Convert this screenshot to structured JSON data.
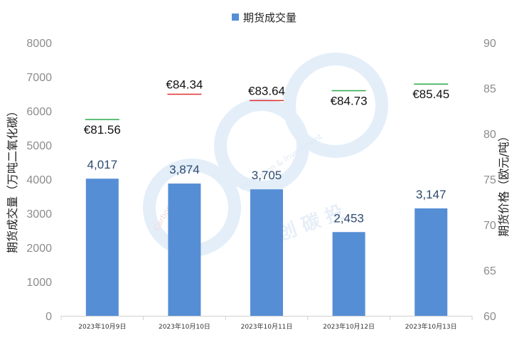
{
  "legend": {
    "label": "期货成交量"
  },
  "watermark": {
    "brand_cn": "创 碳 投",
    "line1": "Carbon",
    "line2": "Innovation & Investment"
  },
  "colors": {
    "bar": "#558ed5",
    "price_up": "#2eaa4a",
    "price_down": "#e03030",
    "watermark": "#e3eef9"
  },
  "chart_data": {
    "type": "bar",
    "categories": [
      "2023年10月9日",
      "2023年10月10日",
      "2023年10月11日",
      "2023年10月12日",
      "2023年10月13日"
    ],
    "series": [
      {
        "name": "期货成交量",
        "values": [
          4017,
          3874,
          3705,
          2453,
          3147
        ],
        "labels": [
          "4,017",
          "3,874",
          "3,705",
          "2,453",
          "3,147"
        ]
      }
    ],
    "price_series": {
      "values": [
        81.56,
        84.34,
        83.64,
        84.73,
        85.45
      ],
      "labels": [
        "€81.56",
        "€84.34",
        "€83.64",
        "€84.73",
        "€85.45"
      ],
      "direction": [
        "up",
        "down",
        "down",
        "up",
        "up"
      ]
    },
    "ylabel": "期货成交量（万吨二氧化碳）",
    "y2label": "期货价格（欧元/吨）",
    "ylim": [
      0,
      8000
    ],
    "y2lim": [
      60,
      90
    ],
    "yticks": [
      "0",
      "1000",
      "2000",
      "3000",
      "4000",
      "5000",
      "6000",
      "7000",
      "8000"
    ],
    "y2ticks": [
      "60",
      "65",
      "70",
      "75",
      "80",
      "85",
      "90"
    ],
    "grid": false,
    "legend_position": "top-center"
  }
}
